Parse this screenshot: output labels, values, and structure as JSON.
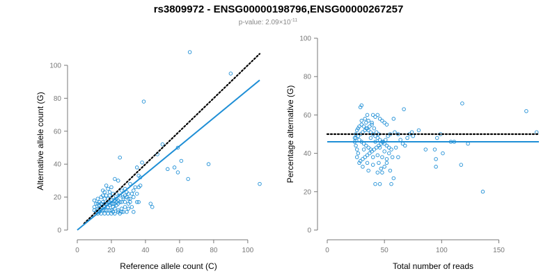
{
  "title": "rs3809972 - ENSG00000198796,ENSG00000267257",
  "subtitle": {
    "prefix": "p-value: 2.09×10",
    "exponent": "-11"
  },
  "colors": {
    "points": "#1f8fd6",
    "fit_line": "#1f8fd6",
    "reference_line": "#000000",
    "axis": "#777777"
  },
  "chart_data": [
    {
      "type": "scatter",
      "xlabel": "Reference allele count (C)",
      "ylabel": "Alternative allele count (G)",
      "xlim": [
        0,
        107
      ],
      "ylim": [
        0,
        108
      ],
      "xticks": [
        0,
        20,
        40,
        60,
        80,
        100
      ],
      "yticks": [
        0,
        20,
        40,
        60,
        80,
        100
      ],
      "ref_line": {
        "style": "dotted",
        "x": [
          4,
          107
        ],
        "y": [
          4,
          107
        ]
      },
      "fit_line": {
        "x": [
          0,
          107
        ],
        "y": [
          0,
          91
        ]
      },
      "points": [
        [
          66,
          108
        ],
        [
          90,
          95
        ],
        [
          39,
          78
        ],
        [
          50,
          52
        ],
        [
          59,
          50
        ],
        [
          47,
          46
        ],
        [
          25,
          44
        ],
        [
          38,
          41
        ],
        [
          35,
          38
        ],
        [
          57,
          38
        ],
        [
          77,
          40
        ],
        [
          61,
          42
        ],
        [
          59,
          35
        ],
        [
          65,
          31
        ],
        [
          53,
          37
        ],
        [
          107,
          28
        ],
        [
          44,
          14
        ],
        [
          43,
          16
        ],
        [
          37,
          32
        ],
        [
          36,
          33
        ],
        [
          34,
          26
        ],
        [
          31,
          28
        ],
        [
          33,
          24
        ],
        [
          24,
          30
        ],
        [
          22,
          31
        ],
        [
          20,
          26
        ],
        [
          28,
          25
        ],
        [
          26,
          24
        ],
        [
          29,
          23
        ],
        [
          17,
          27
        ],
        [
          18,
          25
        ],
        [
          16,
          23
        ],
        [
          15,
          24
        ],
        [
          23,
          22
        ],
        [
          25,
          21
        ],
        [
          27,
          20
        ],
        [
          19,
          21
        ],
        [
          21,
          20
        ],
        [
          22,
          18
        ],
        [
          24,
          18
        ],
        [
          18,
          19
        ],
        [
          16,
          19
        ],
        [
          14,
          20
        ],
        [
          12,
          19
        ],
        [
          10,
          18
        ],
        [
          11,
          16
        ],
        [
          13,
          17
        ],
        [
          15,
          17
        ],
        [
          17,
          16
        ],
        [
          19,
          15
        ],
        [
          20,
          16
        ],
        [
          21,
          14
        ],
        [
          23,
          15
        ],
        [
          16,
          14
        ],
        [
          14,
          14
        ],
        [
          12,
          13
        ],
        [
          10,
          12
        ],
        [
          11,
          11
        ],
        [
          13,
          11
        ],
        [
          15,
          12
        ],
        [
          17,
          12
        ],
        [
          19,
          12
        ],
        [
          21,
          11
        ],
        [
          22,
          13
        ],
        [
          24,
          12
        ],
        [
          26,
          13
        ],
        [
          28,
          14
        ],
        [
          30,
          16
        ],
        [
          29,
          11
        ],
        [
          27,
          11
        ],
        [
          25,
          10
        ],
        [
          18,
          10
        ],
        [
          16,
          10
        ],
        [
          14,
          10
        ],
        [
          12,
          10
        ],
        [
          20,
          10
        ],
        [
          33,
          11
        ],
        [
          31,
          17
        ],
        [
          35,
          17
        ],
        [
          26,
          17
        ],
        [
          27,
          19
        ],
        [
          29,
          20
        ],
        [
          31,
          19
        ],
        [
          33,
          20
        ],
        [
          32,
          22
        ],
        [
          30,
          22
        ],
        [
          28,
          21
        ],
        [
          36,
          26
        ],
        [
          37,
          27
        ],
        [
          35,
          22
        ],
        [
          23,
          19
        ],
        [
          21,
          22
        ],
        [
          19,
          23
        ],
        [
          17,
          21
        ],
        [
          15,
          21
        ],
        [
          13,
          15
        ],
        [
          18,
          14
        ],
        [
          24,
          16
        ],
        [
          22,
          16
        ],
        [
          20,
          18
        ],
        [
          36,
          17
        ],
        [
          10,
          14
        ],
        [
          12,
          16
        ],
        [
          14,
          16
        ],
        [
          16,
          16
        ],
        [
          18,
          17
        ],
        [
          20,
          12
        ],
        [
          22,
          10
        ],
        [
          24,
          11
        ],
        [
          26,
          11
        ],
        [
          28,
          17
        ],
        [
          30,
          13
        ],
        [
          32,
          14
        ],
        [
          30,
          19
        ],
        [
          19,
          17
        ],
        [
          21,
          16
        ],
        [
          23,
          17
        ],
        [
          25,
          17
        ],
        [
          13,
          13
        ],
        [
          16,
          12
        ]
      ]
    },
    {
      "type": "scatter",
      "xlabel": "Total number of reads",
      "ylabel": "Percentage alternative (G)",
      "xlim": [
        0,
        185
      ],
      "ylim": [
        0,
        100
      ],
      "xticks": [
        0,
        50,
        100,
        150
      ],
      "yticks": [
        0,
        20,
        40,
        60,
        80,
        100
      ],
      "ref_line": {
        "style": "dotted",
        "x": [
          0,
          185
        ],
        "y": [
          50,
          50
        ]
      },
      "fit_line": {
        "x": [
          0,
          185
        ],
        "y": [
          46,
          46
        ]
      },
      "points": [
        [
          29,
          64
        ],
        [
          30,
          65
        ],
        [
          35,
          60
        ],
        [
          33,
          58
        ],
        [
          36,
          57
        ],
        [
          39,
          56
        ],
        [
          40,
          60
        ],
        [
          42,
          59
        ],
        [
          44,
          60
        ],
        [
          46,
          58
        ],
        [
          48,
          57
        ],
        [
          50,
          56
        ],
        [
          52,
          55
        ],
        [
          58,
          58
        ],
        [
          67,
          63
        ],
        [
          118,
          66
        ],
        [
          174,
          62
        ],
        [
          183,
          51
        ],
        [
          136,
          20
        ],
        [
          56,
          24
        ],
        [
          58,
          27
        ],
        [
          42,
          24
        ],
        [
          46,
          24
        ],
        [
          44,
          30
        ],
        [
          48,
          30
        ],
        [
          50,
          33
        ],
        [
          31,
          33
        ],
        [
          35,
          35
        ],
        [
          40,
          34
        ],
        [
          45,
          35
        ],
        [
          47,
          32
        ],
        [
          52,
          35
        ],
        [
          55,
          31
        ],
        [
          95,
          33
        ],
        [
          95,
          37
        ],
        [
          108,
          46
        ],
        [
          117,
          34
        ],
        [
          101,
          40
        ],
        [
          94,
          42
        ],
        [
          72,
          50
        ],
        [
          74,
          51
        ],
        [
          80,
          52
        ],
        [
          75,
          49
        ],
        [
          70,
          48
        ],
        [
          66,
          45
        ],
        [
          62,
          50
        ],
        [
          59,
          51
        ],
        [
          55,
          50
        ],
        [
          53,
          49
        ],
        [
          51,
          47
        ],
        [
          49,
          46
        ],
        [
          47,
          45
        ],
        [
          45,
          44
        ],
        [
          43,
          43
        ],
        [
          41,
          42
        ],
        [
          39,
          41
        ],
        [
          37,
          40
        ],
        [
          35,
          39
        ],
        [
          33,
          38
        ],
        [
          31,
          37
        ],
        [
          29,
          36
        ],
        [
          27,
          40
        ],
        [
          26,
          42
        ],
        [
          25,
          44
        ],
        [
          24,
          46
        ],
        [
          24,
          48
        ],
        [
          25,
          50
        ],
        [
          26,
          52
        ],
        [
          27,
          53
        ],
        [
          28,
          54
        ],
        [
          30,
          55
        ],
        [
          32,
          54
        ],
        [
          34,
          53
        ],
        [
          36,
          52
        ],
        [
          38,
          51
        ],
        [
          40,
          50
        ],
        [
          42,
          49
        ],
        [
          44,
          48
        ],
        [
          46,
          47
        ],
        [
          48,
          46
        ],
        [
          50,
          45
        ],
        [
          52,
          44
        ],
        [
          54,
          43
        ],
        [
          56,
          42
        ],
        [
          28,
          47
        ],
        [
          30,
          46
        ],
        [
          32,
          45
        ],
        [
          34,
          44
        ],
        [
          36,
          43
        ],
        [
          38,
          42
        ],
        [
          25,
          48
        ],
        [
          27,
          49
        ],
        [
          29,
          50
        ],
        [
          31,
          51
        ],
        [
          33,
          52
        ],
        [
          35,
          53
        ],
        [
          37,
          54
        ],
        [
          39,
          55
        ],
        [
          41,
          53
        ],
        [
          43,
          51
        ],
        [
          45,
          50
        ],
        [
          30,
          57
        ],
        [
          34,
          56
        ],
        [
          38,
          48
        ],
        [
          42,
          46
        ],
        [
          46,
          43
        ],
        [
          50,
          41
        ],
        [
          54,
          40
        ],
        [
          60,
          43
        ],
        [
          64,
          47
        ],
        [
          68,
          44
        ],
        [
          86,
          42
        ],
        [
          99,
          50
        ],
        [
          111,
          46
        ],
        [
          123,
          45
        ],
        [
          96,
          48
        ],
        [
          40,
          38
        ],
        [
          44,
          39
        ],
        [
          48,
          38
        ],
        [
          52,
          37
        ],
        [
          57,
          38
        ],
        [
          26,
          38
        ],
        [
          28,
          35
        ],
        [
          36,
          31
        ],
        [
          32,
          42
        ],
        [
          62,
          38
        ]
      ]
    }
  ]
}
